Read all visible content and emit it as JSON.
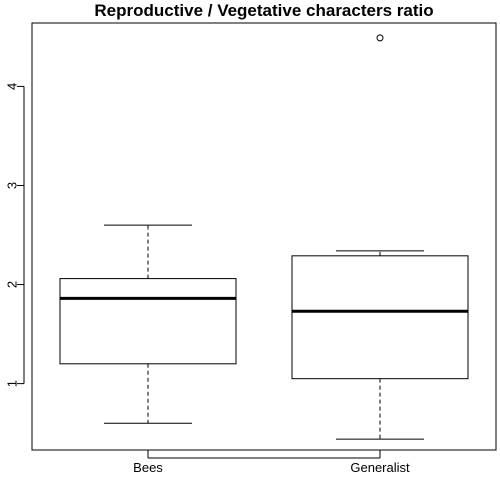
{
  "chart_data": {
    "type": "boxplot",
    "title": "Reproductive / Vegetative characters ratio",
    "xlabel": "",
    "ylabel": "",
    "categories": [
      "Bees",
      "Generalist"
    ],
    "ylim": [
      0.33,
      4.64
    ],
    "yticks": [
      1,
      2,
      3,
      4
    ],
    "grid": false,
    "boxes": [
      {
        "category": "Bees",
        "whisker_low": 0.6,
        "q1": 1.2,
        "median": 1.86,
        "q3": 2.06,
        "whisker_high": 2.6,
        "outliers": []
      },
      {
        "category": "Generalist",
        "whisker_low": 0.44,
        "q1": 1.05,
        "median": 1.73,
        "q3": 2.29,
        "whisker_high": 2.34,
        "outliers": [
          4.49
        ]
      }
    ],
    "colors": {
      "stroke": "#000000",
      "box_fill": "#ffffff",
      "background": "#ffffff"
    }
  }
}
